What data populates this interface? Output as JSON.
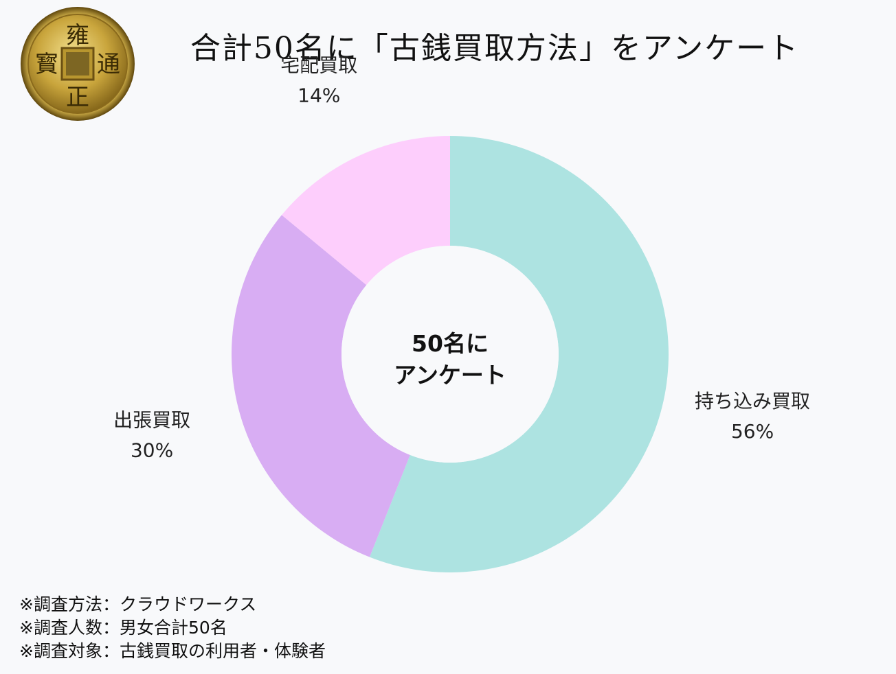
{
  "title": "合計50名に「古銭買取方法」をアンケート",
  "logo": {
    "type": "coin",
    "characters": {
      "top": "雍",
      "right": "通",
      "bottom": "正",
      "left": "寳"
    },
    "colors": {
      "gold_light": "#e9d178",
      "gold_mid": "#b8952e",
      "gold_dark": "#6e5413",
      "hole": "#6d5a1e",
      "char": "#3a2b05"
    }
  },
  "chart_data": {
    "type": "pie",
    "donut": true,
    "center_label": [
      "50名に",
      "アンケート"
    ],
    "slices": [
      {
        "label": "持ち込み買取",
        "value": 56,
        "percent_label": "56%",
        "color": "#ade3e1"
      },
      {
        "label": "出張買取",
        "value": 30,
        "percent_label": "30%",
        "color": "#d8adf3"
      },
      {
        "label": "宅配買取",
        "value": 14,
        "percent_label": "14%",
        "color": "#fdcefc"
      }
    ]
  },
  "notes": [
    "※調査方法：クラウドワークス",
    "※調査人数：男女合計50名",
    "※調査対象：古銭買取の利用者・体験者"
  ]
}
